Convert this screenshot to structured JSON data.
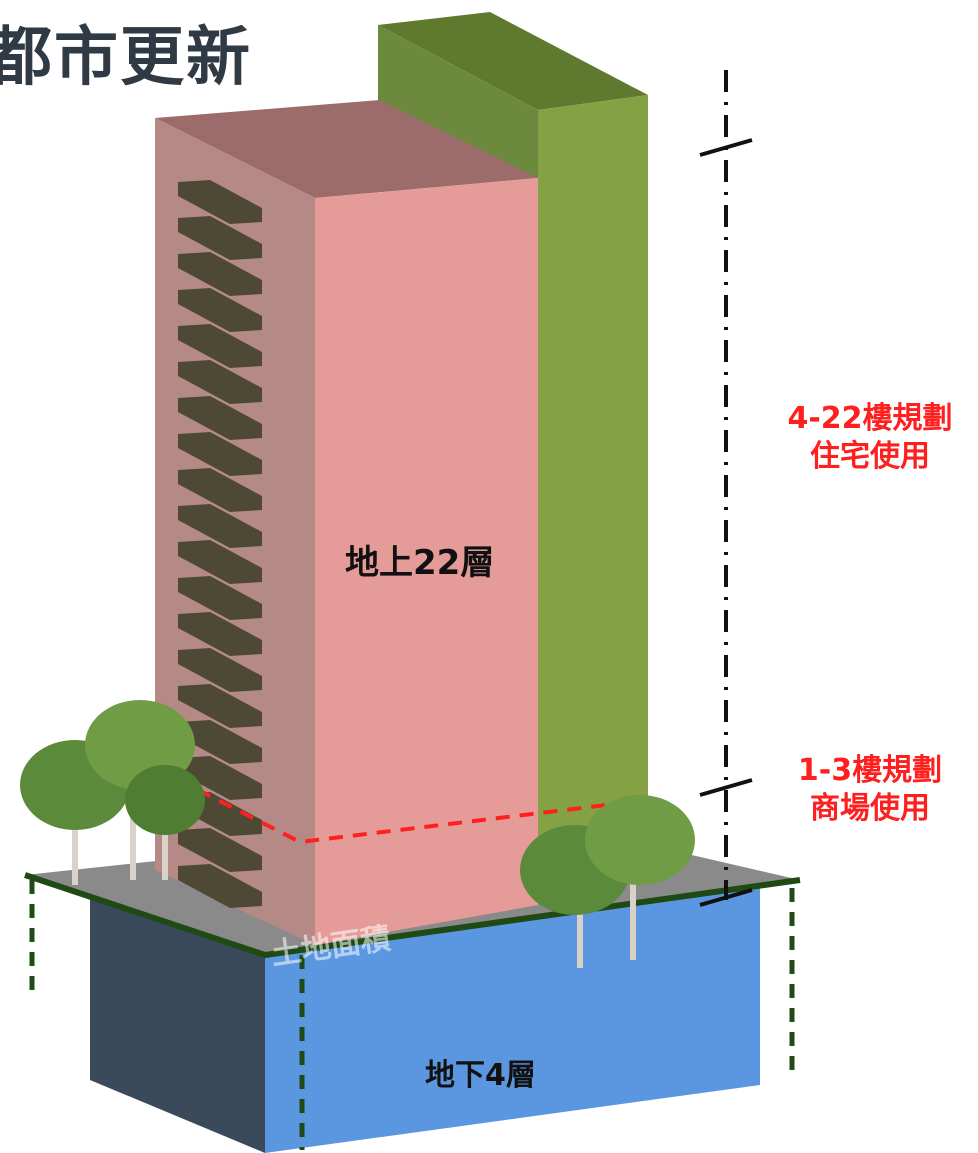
{
  "title": "都市更新",
  "labels": {
    "above_ground": "地上22層",
    "below_ground": "地下4層",
    "land_area": "土地面積",
    "upper_use_line1": "4-22樓規劃",
    "upper_use_line2": "住宅使用",
    "lower_use_line1": "1-3樓規劃",
    "lower_use_line2": "商場使用"
  },
  "colors": {
    "tower_front": "#e59c98",
    "tower_side": "#b58a86",
    "tower_top": "#9c6c6a",
    "green_front": "#84a144",
    "green_side": "#6b8a3d",
    "green_top": "#5f7a2f",
    "balcony": "#4e4934",
    "ground": "#8a8a8a",
    "basement_front": "#5b97e0",
    "basement_side": "#3b4a5a",
    "accent_red": "#ff1f1f",
    "edge_green": "#1f4a14"
  }
}
